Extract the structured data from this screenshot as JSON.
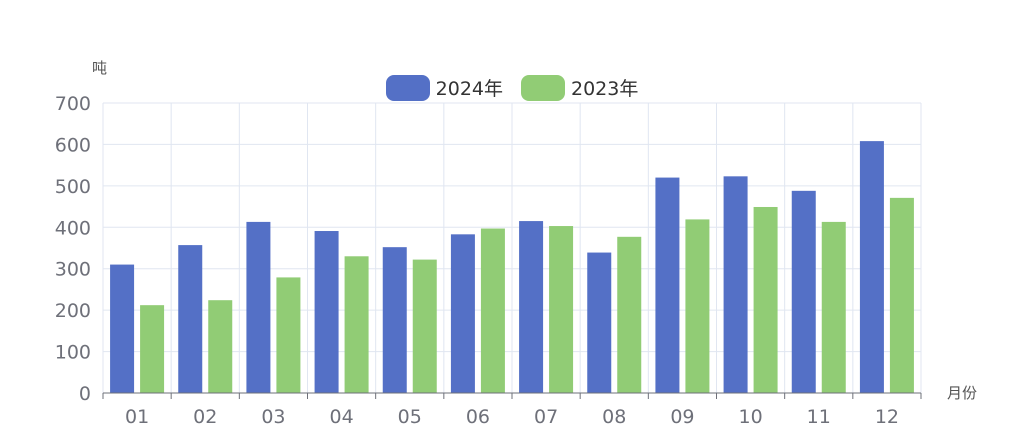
{
  "chart_data": {
    "type": "bar",
    "ylabel": "吨",
    "xlabel": "月份",
    "categories": [
      "01",
      "02",
      "03",
      "04",
      "05",
      "06",
      "07",
      "08",
      "09",
      "10",
      "11",
      "12"
    ],
    "ylim": [
      0,
      700
    ],
    "yticks": [
      0,
      100,
      200,
      300,
      400,
      500,
      600,
      700
    ],
    "grid": true,
    "legend_position": "top-center",
    "series": [
      {
        "name": "2024年",
        "color": "#5470c6",
        "values": [
          310,
          357,
          413,
          391,
          352,
          383,
          415,
          339,
          520,
          523,
          488,
          608
        ]
      },
      {
        "name": "2023年",
        "color": "#91cc75",
        "values": [
          212,
          224,
          279,
          330,
          322,
          397,
          403,
          377,
          419,
          449,
          413,
          471
        ]
      }
    ]
  }
}
